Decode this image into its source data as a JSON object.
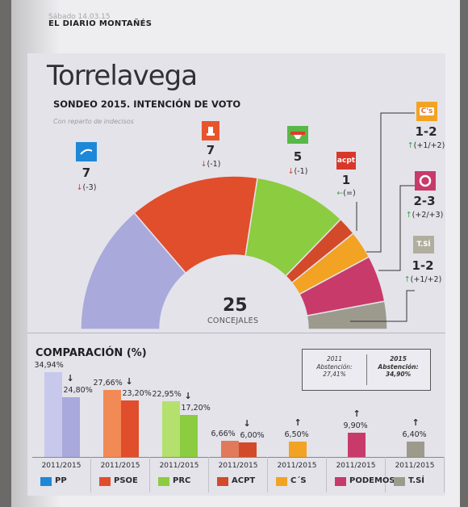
{
  "header": {
    "date": "Sábado 14.03.15",
    "newspaper": "EL DIARIO MONTAÑÉS"
  },
  "title": "Torrelavega",
  "subtitle": "SONDEO 2015. INTENCIÓN DE VOTO",
  "note": "Con reparto de indecisos",
  "total": {
    "value": "25",
    "label": "CONCEJALES"
  },
  "comparison_title": "COMPARACIÓN (%)",
  "abstention": {
    "y2011_label": "2011",
    "y2011_text": "Abstención:",
    "y2011_value": "27,41%",
    "y2015_label": "2015",
    "y2015_text": "Abstención:",
    "y2015_value": "34,90%"
  },
  "parties": [
    {
      "key": "pp",
      "seats": "7",
      "change": "(-3)",
      "trend": "down",
      "logo": "PP"
    },
    {
      "key": "psoe",
      "seats": "7",
      "change": "(-1)",
      "trend": "down",
      "logo": "PSOE"
    },
    {
      "key": "prc",
      "seats": "5",
      "change": "(-1)",
      "trend": "down",
      "logo": "PRC"
    },
    {
      "key": "acpt",
      "seats": "1",
      "change": "(=)",
      "trend": "equal",
      "logo": "acpt"
    },
    {
      "key": "cs",
      "seats": "1-2",
      "change": "(+1/+2)",
      "trend": "up",
      "logo": "C's"
    },
    {
      "key": "podemos",
      "seats": "2-3",
      "change": "(+2/+3)",
      "trend": "up",
      "logo": "PODEMOS"
    },
    {
      "key": "tsi",
      "seats": "1-2",
      "change": "(+1/+2)",
      "trend": "up",
      "logo": "T.SÍ"
    }
  ],
  "chart_data": [
    {
      "type": "pie",
      "title": "SONDEO 2015. INTENCIÓN DE VOTO",
      "total": 25,
      "categories": [
        "PP",
        "PSOE",
        "PRC",
        "ACPT",
        "C'S",
        "PODEMOS",
        "T.SÍ"
      ],
      "values": [
        7,
        7,
        5,
        1,
        1.5,
        2.5,
        1.5
      ],
      "seat_labels": [
        "7",
        "7",
        "5",
        "1",
        "1-2",
        "2-3",
        "1-2"
      ],
      "changes": [
        "(-3)",
        "(-1)",
        "(-1)",
        "(=)",
        "(+1/+2)",
        "(+2/+3)",
        "(+1/+2)"
      ],
      "colors": [
        "#a9a9dc",
        "#e04e2c",
        "#8ccc40",
        "#d24a2a",
        "#f2a324",
        "#c83a6a",
        "#9c9a8c"
      ]
    },
    {
      "type": "bar",
      "title": "COMPARACIÓN (%)",
      "categories": [
        "PP",
        "PSOE",
        "PRC",
        "ACPT",
        "C´S",
        "PODEMOS",
        "T.SÍ"
      ],
      "category_labels": [
        "2011/2015",
        "2011/2015",
        "2011/2015",
        "2011/2015",
        "2011/2015",
        "2011/2015",
        "2011/2015"
      ],
      "series": [
        {
          "name": "2011",
          "values": [
            34.94,
            27.66,
            22.95,
            6.66,
            null,
            null,
            null
          ],
          "labels": [
            "34,94%",
            "27,66%",
            "22,95%",
            "6,66%",
            "",
            "",
            ""
          ]
        },
        {
          "name": "2015",
          "values": [
            24.8,
            23.2,
            17.2,
            6.0,
            6.5,
            9.9,
            6.4
          ],
          "labels": [
            "24,80%",
            "23,20%",
            "17,20%",
            "6,00%",
            "6,50%",
            "9,90%",
            "6,40%"
          ]
        }
      ],
      "trends": [
        "down",
        "down",
        "down",
        "down",
        "up",
        "up",
        "up"
      ],
      "colors_2011": [
        "#c8c8ec",
        "#f28a55",
        "#b4e06e",
        "#e07a5a",
        "#f4c070",
        "#d96a90",
        "#c2c0b2"
      ],
      "colors_2015": [
        "#a9a9dc",
        "#e04e2c",
        "#8ccc40",
        "#d24a2a",
        "#f2a324",
        "#c83a6a",
        "#9c9a8c"
      ]
    }
  ],
  "bottom_labels": [
    "PP",
    "PSOE",
    "PRC",
    "ACPT",
    "C´S",
    "PODEMOS",
    "T.SÍ"
  ]
}
